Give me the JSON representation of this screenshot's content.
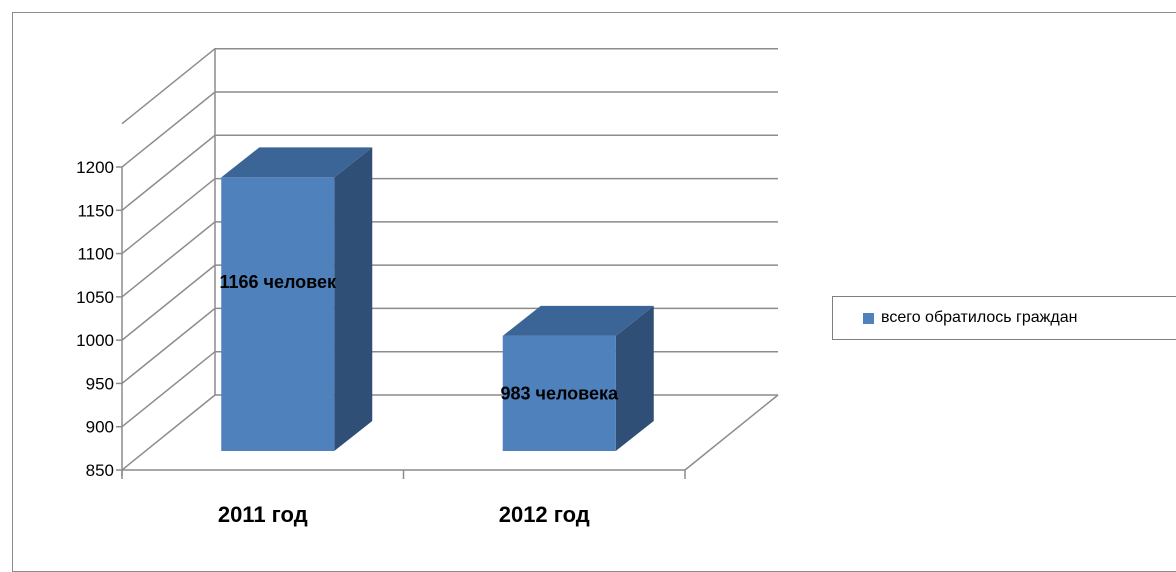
{
  "chart_data": {
    "type": "bar",
    "categories": [
      "2011 год",
      "2012 год"
    ],
    "series": [
      {
        "name": "всего обратилось граждан",
        "values": [
          1166,
          983
        ]
      }
    ],
    "data_labels": [
      "1166 человек",
      "983 человека"
    ],
    "y_ticks": [
      "850",
      "900",
      "950",
      "1000",
      "1050",
      "1100",
      "1150",
      "1200"
    ],
    "ylim": [
      850,
      1200
    ],
    "grid": true,
    "legend": "right",
    "colors": {
      "bar_front": "#4f81bd",
      "bar_side": "#2f4f77",
      "bar_top": "#3b6597",
      "grid": "#8c8c8c"
    }
  }
}
